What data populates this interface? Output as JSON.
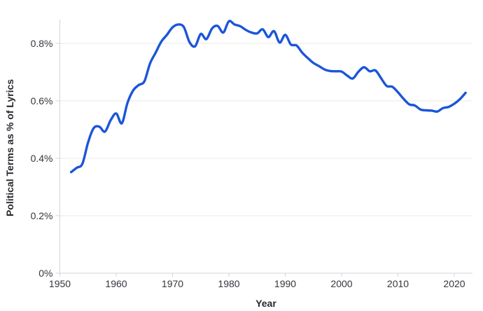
{
  "chart_data": {
    "type": "line",
    "title": "",
    "xlabel": "Year",
    "ylabel": "Political Terms as % of Lyrics",
    "grid": "horizontal",
    "legend": "none",
    "xlim": [
      1950,
      2023.2
    ],
    "ylim": [
      0,
      0.88
    ],
    "x_ticks": [
      {
        "value": 1950,
        "label": "1950"
      },
      {
        "value": 1960,
        "label": "1960"
      },
      {
        "value": 1970,
        "label": "1970"
      },
      {
        "value": 1980,
        "label": "1980"
      },
      {
        "value": 1990,
        "label": "1990"
      },
      {
        "value": 2000,
        "label": "2000"
      },
      {
        "value": 2010,
        "label": "2010"
      },
      {
        "value": 2020,
        "label": "2020"
      }
    ],
    "y_ticks": [
      {
        "value": 0.0,
        "label": "0%"
      },
      {
        "value": 0.2,
        "label": "0.2%"
      },
      {
        "value": 0.4,
        "label": "0.4%"
      },
      {
        "value": 0.6,
        "label": "0.6%"
      },
      {
        "value": 0.8,
        "label": "0.8%"
      }
    ],
    "series": [
      {
        "name": "Political terms as % of lyrics",
        "color": "#1b55d9",
        "x": [
          1952,
          1953,
          1954,
          1955,
          1956,
          1957,
          1958,
          1959,
          1960,
          1961,
          1962,
          1963,
          1964,
          1965,
          1966,
          1967,
          1968,
          1969,
          1970,
          1971,
          1972,
          1973,
          1974,
          1975,
          1976,
          1977,
          1978,
          1979,
          1980,
          1981,
          1982,
          1983,
          1984,
          1985,
          1986,
          1987,
          1988,
          1989,
          1990,
          1991,
          1992,
          1993,
          1994,
          1995,
          1996,
          1997,
          1998,
          1999,
          2000,
          2001,
          2002,
          2003,
          2004,
          2005,
          2006,
          2007,
          2008,
          2009,
          2010,
          2011,
          2012,
          2013,
          2014,
          2015,
          2016,
          2017,
          2018,
          2019,
          2020,
          2021,
          2022
        ],
        "values": [
          0.352,
          0.367,
          0.381,
          0.455,
          0.505,
          0.51,
          0.493,
          0.532,
          0.556,
          0.522,
          0.593,
          0.636,
          0.655,
          0.668,
          0.73,
          0.768,
          0.806,
          0.83,
          0.856,
          0.866,
          0.857,
          0.805,
          0.79,
          0.833,
          0.815,
          0.852,
          0.861,
          0.838,
          0.877,
          0.866,
          0.86,
          0.847,
          0.838,
          0.835,
          0.849,
          0.822,
          0.843,
          0.803,
          0.83,
          0.796,
          0.793,
          0.768,
          0.749,
          0.732,
          0.721,
          0.709,
          0.704,
          0.703,
          0.702,
          0.688,
          0.678,
          0.702,
          0.717,
          0.703,
          0.706,
          0.679,
          0.652,
          0.649,
          0.63,
          0.607,
          0.588,
          0.584,
          0.57,
          0.567,
          0.566,
          0.563,
          0.575,
          0.579,
          0.59,
          0.606,
          0.628
        ]
      }
    ]
  },
  "colors": {
    "line": "#1b55d9",
    "grid": "#e9e9e9",
    "axis": "#d4d4d4",
    "tick_text": "#33363c",
    "title_text": "#26292e",
    "background": "#ffffff"
  }
}
